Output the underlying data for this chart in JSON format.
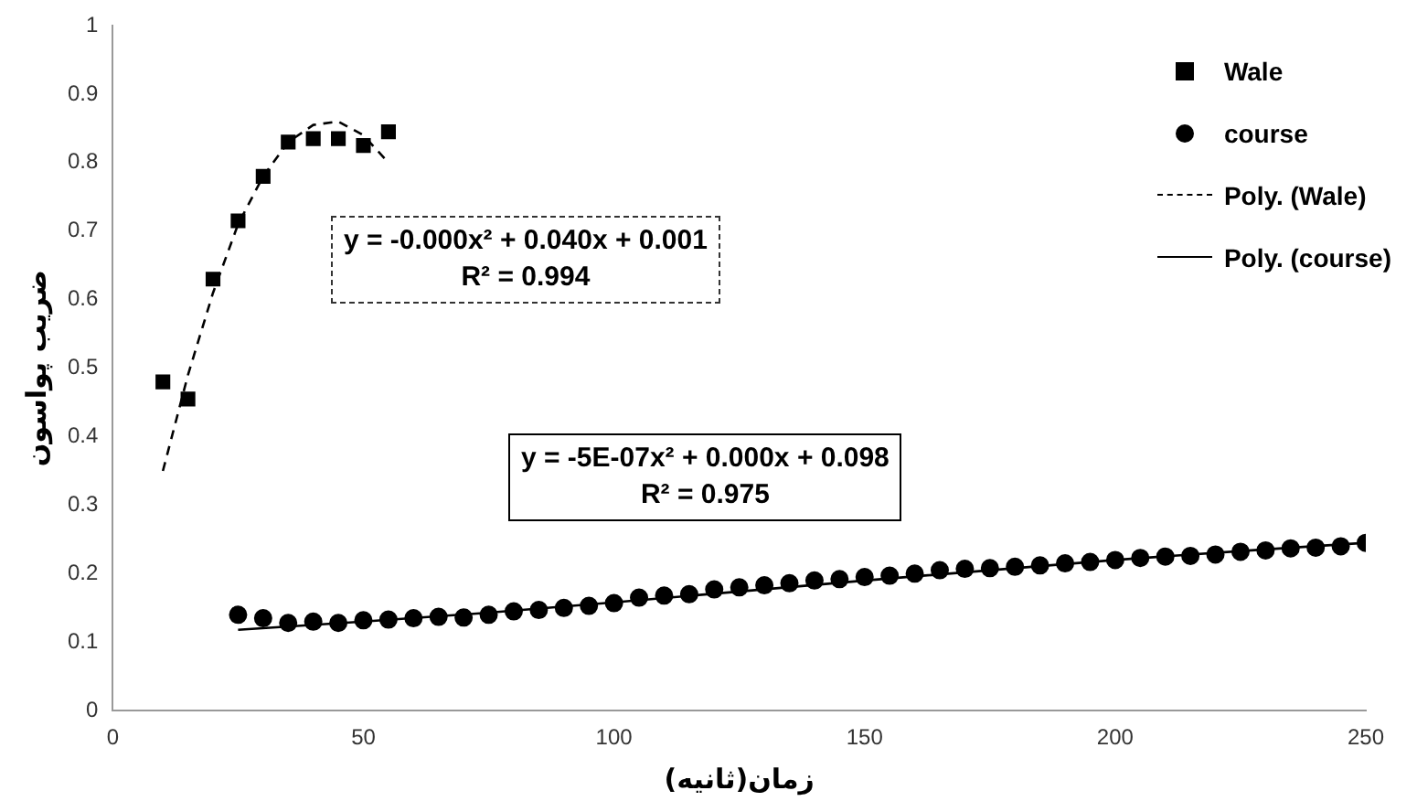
{
  "chart_data": {
    "type": "scatter",
    "xlabel": "زمان(ثانیه)",
    "ylabel": "ضریب پواسون",
    "xlim": [
      0,
      250
    ],
    "xticks": [
      0,
      50,
      100,
      150,
      200,
      250
    ],
    "ylim": [
      0,
      1
    ],
    "yticks": [
      0,
      0.1,
      0.2,
      0.3,
      0.4,
      0.5,
      0.6,
      0.7,
      0.8,
      0.9,
      1
    ],
    "grid": false,
    "legend": "top right",
    "annotations": [
      "y = -0.000x² + 0.040x + 0.001\nR² = 0.994",
      "y = -5E-07x² + 0.000x + 0.098\nR² = 0.975"
    ],
    "series": [
      {
        "name": "Wale",
        "type": "scatter",
        "marker": "square",
        "color": "#000000",
        "x": [
          10,
          15,
          20,
          25,
          30,
          35,
          40,
          45,
          50,
          55
        ],
        "values": [
          0.48,
          0.455,
          0.63,
          0.715,
          0.78,
          0.83,
          0.835,
          0.835,
          0.825,
          0.845
        ]
      },
      {
        "name": "course",
        "type": "scatter",
        "marker": "circle",
        "color": "#000000",
        "x": [
          25,
          30,
          35,
          40,
          45,
          50,
          55,
          60,
          65,
          70,
          75,
          80,
          85,
          90,
          95,
          100,
          105,
          110,
          115,
          120,
          125,
          130,
          135,
          140,
          145,
          150,
          155,
          160,
          165,
          170,
          175,
          180,
          185,
          190,
          195,
          200,
          205,
          210,
          215,
          220,
          225,
          230,
          235,
          240,
          245,
          250
        ],
        "values": [
          0.14,
          0.135,
          0.128,
          0.13,
          0.128,
          0.132,
          0.133,
          0.135,
          0.137,
          0.136,
          0.14,
          0.145,
          0.147,
          0.15,
          0.153,
          0.157,
          0.165,
          0.168,
          0.17,
          0.177,
          0.18,
          0.183,
          0.186,
          0.19,
          0.192,
          0.195,
          0.197,
          0.2,
          0.205,
          0.207,
          0.208,
          0.21,
          0.212,
          0.215,
          0.217,
          0.22,
          0.223,
          0.225,
          0.226,
          0.228,
          0.232,
          0.234,
          0.237,
          0.238,
          0.24,
          0.245
        ]
      },
      {
        "name": "Poly. (Wale)",
        "type": "line",
        "marker": "none",
        "line_style": "dashed",
        "color": "#000000",
        "x": [
          10,
          15,
          20,
          25,
          30,
          35,
          40,
          45,
          50,
          55
        ],
        "values": [
          0.35,
          0.49,
          0.61,
          0.71,
          0.78,
          0.83,
          0.855,
          0.86,
          0.84,
          0.8
        ]
      },
      {
        "name": "Poly. (course)",
        "type": "line",
        "marker": "none",
        "line_style": "solid",
        "color": "#000000",
        "x": [
          25,
          50,
          75,
          100,
          125,
          150,
          175,
          200,
          225,
          250
        ],
        "values": [
          0.118,
          0.13,
          0.143,
          0.158,
          0.174,
          0.19,
          0.205,
          0.22,
          0.233,
          0.245
        ]
      }
    ]
  }
}
